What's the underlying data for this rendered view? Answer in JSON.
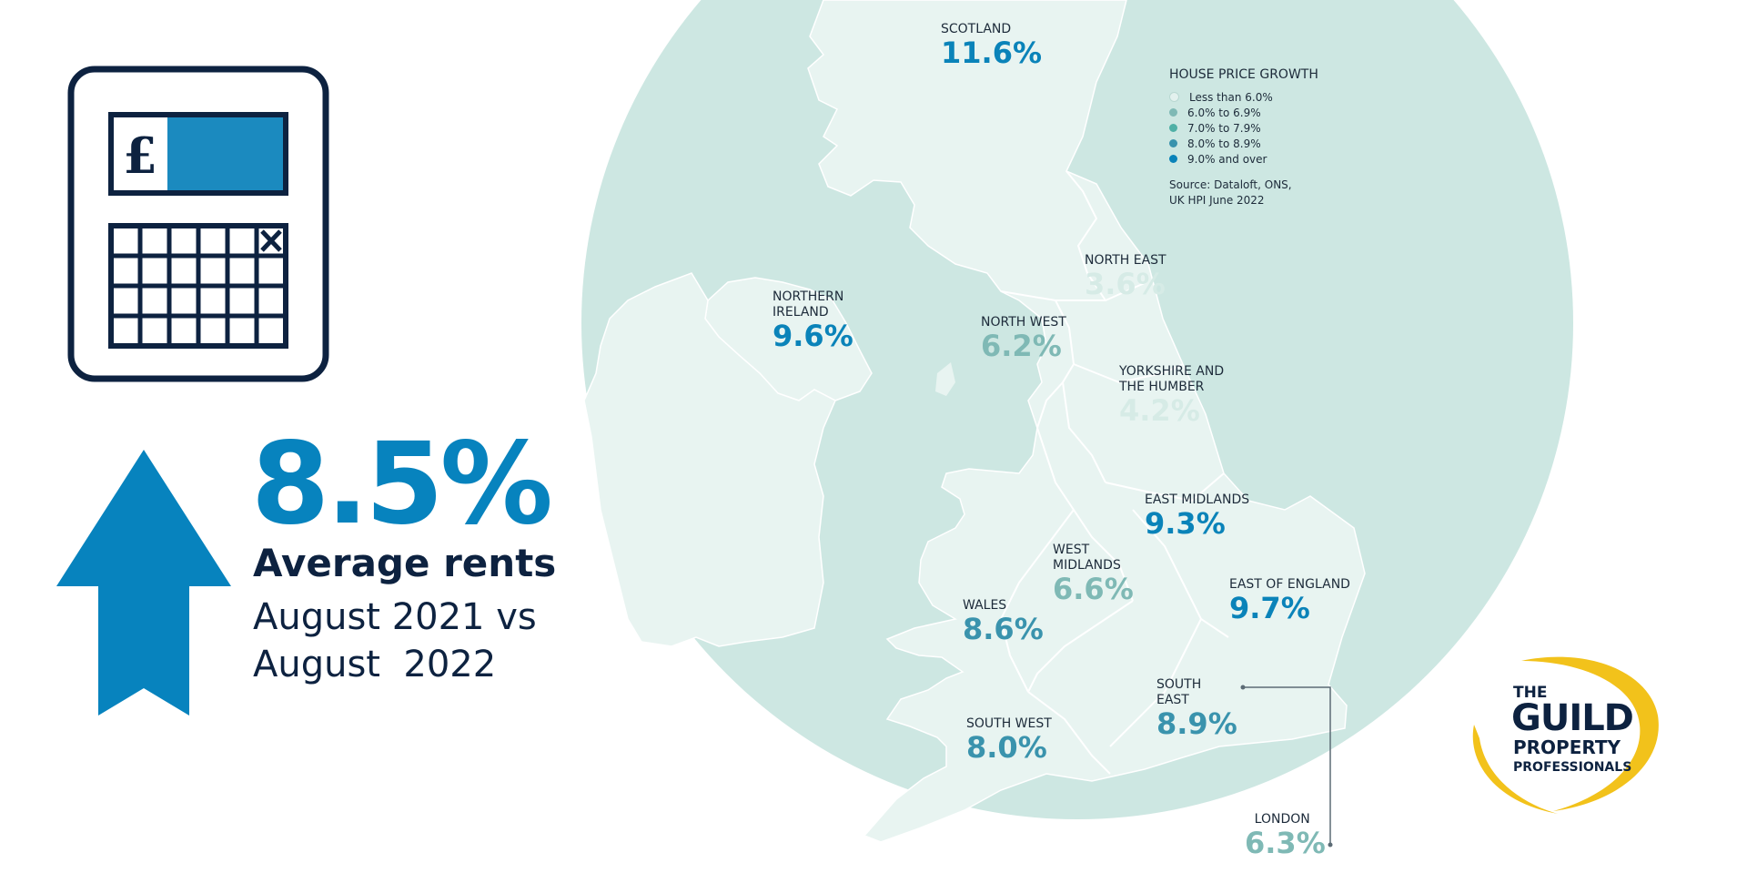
{
  "stat": {
    "value": "8.5%",
    "label": "Average rents",
    "period": "August 2021 vs\nAugust  2022"
  },
  "legend": {
    "title": "HOUSE PRICE GROWTH",
    "items": [
      {
        "label": "Less than 6.0%",
        "color": "#e3f1ee"
      },
      {
        "label": "6.0% to 6.9%",
        "color": "#7fb9b5"
      },
      {
        "label": "7.0% to 7.9%",
        "color": "#4fb0a6"
      },
      {
        "label": "8.0% to 8.9%",
        "color": "#3a93ad"
      },
      {
        "label": "9.0% and over",
        "color": "#0a83b9"
      }
    ],
    "source": "Source: Dataloft, ONS,\nUK HPI June 2022"
  },
  "regions": [
    {
      "name": "SCOTLAND",
      "value": "11.6%",
      "color": "#0a83b9"
    },
    {
      "name": "NORTHERN\nIRELAND",
      "value": "9.6%",
      "color": "#0a83b9"
    },
    {
      "name": "NORTH EAST",
      "value": "3.6%",
      "color": "#d6ebe6"
    },
    {
      "name": "NORTH WEST",
      "value": "6.2%",
      "color": "#7fb9b5"
    },
    {
      "name": "YORKSHIRE AND\nTHE HUMBER",
      "value": "4.2%",
      "color": "#d6ebe6"
    },
    {
      "name": "EAST MIDLANDS",
      "value": "9.3%",
      "color": "#0a83b9"
    },
    {
      "name": "WEST\nMIDLANDS",
      "value": "6.6%",
      "color": "#7fb9b5"
    },
    {
      "name": "WALES",
      "value": "8.6%",
      "color": "#3a93ad"
    },
    {
      "name": "EAST OF ENGLAND",
      "value": "9.7%",
      "color": "#0a83b9"
    },
    {
      "name": "SOUTH\nEAST",
      "value": "8.9%",
      "color": "#3a93ad"
    },
    {
      "name": "SOUTH WEST",
      "value": "8.0%",
      "color": "#3a93ad"
    },
    {
      "name": "LONDON",
      "value": "6.3%",
      "color": "#7fb9b5"
    }
  ],
  "logo": {
    "line1": "THE",
    "line2": "GUILD",
    "line3": "PROPERTY",
    "line4": "PROFESSIONALS"
  },
  "colors": {
    "accent_blue": "#0783be",
    "navy": "#0d2240",
    "sea": "#cde7e2",
    "land": "#e8f4f1",
    "logo_yellow": "#f2c21b"
  }
}
